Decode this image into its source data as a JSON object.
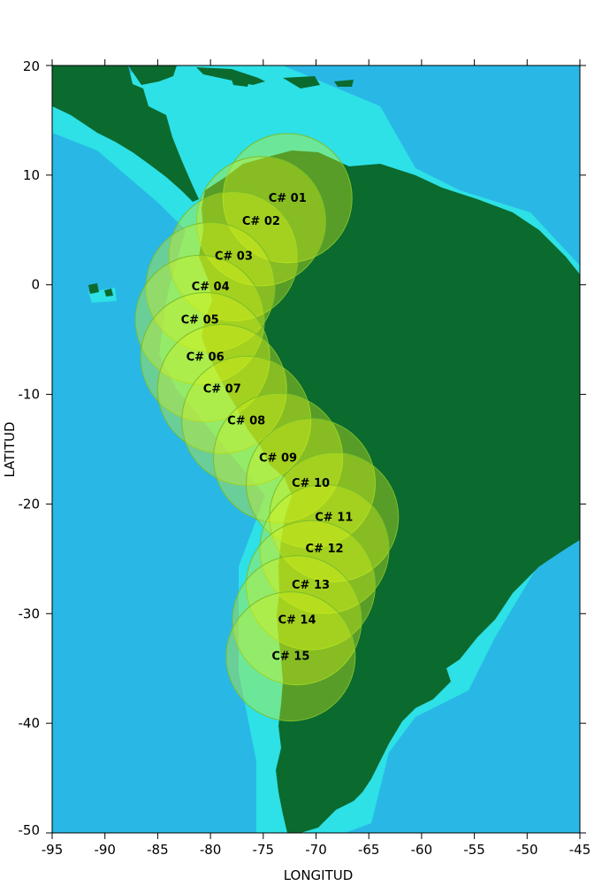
{
  "axes": {
    "x_title": "LONGITUD",
    "y_title": "LATITUD",
    "x_ticks": [
      -95,
      -90,
      -85,
      -80,
      -75,
      -70,
      -65,
      -60,
      -55,
      -50,
      -45
    ],
    "y_ticks": [
      20,
      10,
      0,
      -10,
      -20,
      -30,
      -40,
      -50
    ],
    "lon_range": [
      -95,
      -45
    ],
    "lat_range": [
      -50,
      20
    ]
  },
  "colors": {
    "ocean": "#29b8e6",
    "shelf": "#2ee6e6",
    "land": "#0b6a2e",
    "circle_fill": "#d4f21c",
    "circle_stroke": "#7bbf2a"
  },
  "circles": [
    {
      "label": "C# 01",
      "lon": -72.7,
      "lat": 7.9
    },
    {
      "label": "C# 02",
      "lon": -75.2,
      "lat": 5.8
    },
    {
      "label": "C# 03",
      "lon": -77.8,
      "lat": 2.6
    },
    {
      "label": "C# 04",
      "lon": -80.0,
      "lat": -0.2
    },
    {
      "label": "C# 05",
      "lon": -81.0,
      "lat": -3.2
    },
    {
      "label": "C# 06",
      "lon": -80.5,
      "lat": -6.6
    },
    {
      "label": "C# 07",
      "lon": -78.9,
      "lat": -9.5
    },
    {
      "label": "C# 08",
      "lon": -76.6,
      "lat": -12.4
    },
    {
      "label": "C# 09",
      "lon": -73.6,
      "lat": -15.8
    },
    {
      "label": "C# 10",
      "lon": -70.5,
      "lat": -18.1
    },
    {
      "label": "C# 11",
      "lon": -68.3,
      "lat": -21.2
    },
    {
      "label": "C# 12",
      "lon": -69.2,
      "lat": -24.1
    },
    {
      "label": "C# 13",
      "lon": -70.5,
      "lat": -27.4
    },
    {
      "label": "C# 14",
      "lon": -71.8,
      "lat": -30.6
    },
    {
      "label": "C# 15",
      "lon": -72.4,
      "lat": -33.9
    }
  ],
  "circle_radius_deg": 6.0
}
